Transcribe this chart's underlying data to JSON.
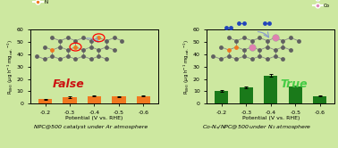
{
  "background_color": "#cde8a0",
  "left_chart": {
    "categories": [
      "-0.2",
      "-0.3",
      "-0.4",
      "-0.5",
      "-0.6"
    ],
    "x_values": [
      0,
      1,
      2,
      3,
      4
    ],
    "bar_heights": [
      3.5,
      5.2,
      6.2,
      5.8,
      6.2
    ],
    "bar_errors": [
      0.35,
      0.4,
      0.35,
      0.35,
      0.4
    ],
    "bar_color": "#f07820",
    "ylabel": "R$_{NH_3}$ ($\\mu$g h$^{-1}$ mg$_{cat.}$$^{-1}$)",
    "xlabel": "Potential (V vs. RHE)",
    "title_text": "False",
    "title_color": "#cc1111",
    "subtitle": "NPC@500 catalyst under Ar atmosphere",
    "ylim": [
      0,
      60
    ],
    "legend_nh3_color": "#f07820",
    "legend_c_color": "#555555",
    "legend_n_color": "#f07820"
  },
  "right_chart": {
    "categories": [
      "-0.2",
      "-0.3",
      "-0.4",
      "-0.5",
      "-0.6"
    ],
    "x_values": [
      0,
      1,
      2,
      3,
      4
    ],
    "bar_heights": [
      10.2,
      13.2,
      22.8,
      14.2,
      6.2
    ],
    "bar_errors": [
      0.5,
      0.55,
      0.85,
      0.65,
      0.35
    ],
    "bar_color": "#1a7a1a",
    "ylabel": "R$_{NH_3}$ ($\\mu$g h$^{-1}$ mg$_{cat.}$$^{-1}$)",
    "xlabel": "Potential (V vs. RHE)",
    "title_text": "True",
    "title_color": "#44cc44",
    "subtitle": "Co-N$_x$/NPC@500 under N$_2$ atmosphere",
    "ylim": [
      0,
      60
    ],
    "legend_nh3_color": "#2244cc",
    "legend_n2_color": "#2244cc",
    "legend_co_color": "#dd88bb"
  }
}
